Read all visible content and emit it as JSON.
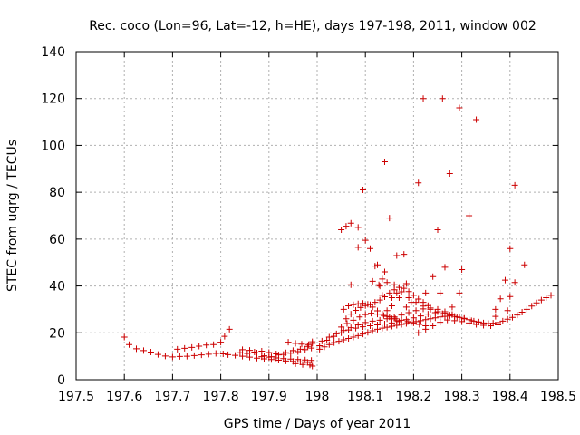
{
  "chart_data": {
    "type": "scatter",
    "title": "Rec. coco (Lon=96, Lat=-12, h=HE), days 197-198, 2011, window 002",
    "xlabel": "GPS time / Days of year 2011",
    "ylabel": "STEC from uqrg / TECUs",
    "xlim": [
      197.5,
      198.5
    ],
    "ylim": [
      0,
      140
    ],
    "grid": true,
    "marker": "+",
    "color": "#cc0000",
    "x_ticks": [
      {
        "value": 197.5,
        "label": "197.5"
      },
      {
        "value": 197.6,
        "label": "197.6"
      },
      {
        "value": 197.7,
        "label": "197.7"
      },
      {
        "value": 197.8,
        "label": "197.8"
      },
      {
        "value": 197.9,
        "label": "197.9"
      },
      {
        "value": 198.0,
        "label": "198"
      },
      {
        "value": 198.1,
        "label": "198.1"
      },
      {
        "value": 198.2,
        "label": "198.2"
      },
      {
        "value": 198.3,
        "label": "198.3"
      },
      {
        "value": 198.4,
        "label": "198.4"
      },
      {
        "value": 198.5,
        "label": "198.5"
      }
    ],
    "y_ticks": [
      {
        "value": 0,
        "label": "0"
      },
      {
        "value": 20,
        "label": "20"
      },
      {
        "value": 40,
        "label": "40"
      },
      {
        "value": 60,
        "label": "60"
      },
      {
        "value": 80,
        "label": "80"
      },
      {
        "value": 100,
        "label": "100"
      },
      {
        "value": 120,
        "label": "120"
      },
      {
        "value": 140,
        "label": "140"
      }
    ],
    "points": [
      [
        197.6,
        18.2
      ],
      [
        197.61,
        15.0
      ],
      [
        197.625,
        13.2
      ],
      [
        197.64,
        12.4
      ],
      [
        197.655,
        11.8
      ],
      [
        197.67,
        10.8
      ],
      [
        197.685,
        10.1
      ],
      [
        197.7,
        9.7
      ],
      [
        197.715,
        9.9
      ],
      [
        197.73,
        10.0
      ],
      [
        197.745,
        10.3
      ],
      [
        197.76,
        10.6
      ],
      [
        197.775,
        10.9
      ],
      [
        197.79,
        11.2
      ],
      [
        197.805,
        11.0
      ],
      [
        197.815,
        10.7
      ],
      [
        197.83,
        10.4
      ],
      [
        197.845,
        10.0
      ],
      [
        197.86,
        9.6
      ],
      [
        197.875,
        9.2
      ],
      [
        197.89,
        8.9
      ],
      [
        197.905,
        8.6
      ],
      [
        197.92,
        8.3
      ],
      [
        197.935,
        8.0
      ],
      [
        197.95,
        7.8
      ],
      [
        197.965,
        7.6
      ],
      [
        197.98,
        7.4
      ],
      [
        197.71,
        13.0
      ],
      [
        197.725,
        13.4
      ],
      [
        197.74,
        13.8
      ],
      [
        197.755,
        14.3
      ],
      [
        197.77,
        14.8
      ],
      [
        197.785,
        15.0
      ],
      [
        197.8,
        16.0
      ],
      [
        197.808,
        18.5
      ],
      [
        197.818,
        21.5
      ],
      [
        197.84,
        11.5
      ],
      [
        197.855,
        11.2
      ],
      [
        197.87,
        11.8
      ],
      [
        197.885,
        12.2
      ],
      [
        197.9,
        11.6
      ],
      [
        197.915,
        11.0
      ],
      [
        197.93,
        10.8
      ],
      [
        197.945,
        11.3
      ],
      [
        197.96,
        12.0
      ],
      [
        197.975,
        12.8
      ],
      [
        197.988,
        13.5
      ],
      [
        197.845,
        12.8
      ],
      [
        197.86,
        12.5
      ],
      [
        197.875,
        11.4
      ],
      [
        197.89,
        10.2
      ],
      [
        197.905,
        9.8
      ],
      [
        197.92,
        10.6
      ],
      [
        197.935,
        11.5
      ],
      [
        197.95,
        12.4
      ],
      [
        197.965,
        13.0
      ],
      [
        197.98,
        14.2
      ],
      [
        197.99,
        15.5
      ],
      [
        197.885,
        9.8
      ],
      [
        197.9,
        9.6
      ],
      [
        197.915,
        9.3
      ],
      [
        197.93,
        9.0
      ],
      [
        197.945,
        8.8
      ],
      [
        197.96,
        8.6
      ],
      [
        197.975,
        8.4
      ],
      [
        197.988,
        8.2
      ],
      [
        197.94,
        16.0
      ],
      [
        197.955,
        15.5
      ],
      [
        197.968,
        15.2
      ],
      [
        197.982,
        15.0
      ],
      [
        197.99,
        16.2
      ],
      [
        197.955,
        6.8
      ],
      [
        197.97,
        6.5
      ],
      [
        197.985,
        6.3
      ],
      [
        197.99,
        5.8
      ],
      [
        198.005,
        13.0
      ],
      [
        198.015,
        14.0
      ],
      [
        198.025,
        15.0
      ],
      [
        198.035,
        15.8
      ],
      [
        198.045,
        16.4
      ],
      [
        198.055,
        17.0
      ],
      [
        198.065,
        17.6
      ],
      [
        198.075,
        18.2
      ],
      [
        198.085,
        18.8
      ],
      [
        198.095,
        19.5
      ],
      [
        198.105,
        20.2
      ],
      [
        198.115,
        20.9
      ],
      [
        198.125,
        21.5
      ],
      [
        198.135,
        22.0
      ],
      [
        198.145,
        22.4
      ],
      [
        198.155,
        22.8
      ],
      [
        198.165,
        23.2
      ],
      [
        198.175,
        23.6
      ],
      [
        198.185,
        24.0
      ],
      [
        198.195,
        24.4
      ],
      [
        198.205,
        24.8
      ],
      [
        198.215,
        25.2
      ],
      [
        198.225,
        25.6
      ],
      [
        198.235,
        26.0
      ],
      [
        198.245,
        26.4
      ],
      [
        198.255,
        26.8
      ],
      [
        198.265,
        27.0
      ],
      [
        198.275,
        27.2
      ],
      [
        198.285,
        27.0
      ],
      [
        198.295,
        26.6
      ],
      [
        198.305,
        26.2
      ],
      [
        198.315,
        25.6
      ],
      [
        198.325,
        25.0
      ],
      [
        198.335,
        24.6
      ],
      [
        198.345,
        24.2
      ],
      [
        198.355,
        24.0
      ],
      [
        198.365,
        24.1
      ],
      [
        198.375,
        24.4
      ],
      [
        198.385,
        25.0
      ],
      [
        198.395,
        25.8
      ],
      [
        198.405,
        26.6
      ],
      [
        198.415,
        27.6
      ],
      [
        198.425,
        28.8
      ],
      [
        198.435,
        30.0
      ],
      [
        198.445,
        31.4
      ],
      [
        198.455,
        32.8
      ],
      [
        198.465,
        34.0
      ],
      [
        198.475,
        35.0
      ],
      [
        198.485,
        36.0
      ],
      [
        198.005,
        14.5
      ],
      [
        198.02,
        16.8
      ],
      [
        198.035,
        18.5
      ],
      [
        198.05,
        20.0
      ],
      [
        198.065,
        21.2
      ],
      [
        198.08,
        22.0
      ],
      [
        198.095,
        22.6
      ],
      [
        198.11,
        23.0
      ],
      [
        198.125,
        23.4
      ],
      [
        198.14,
        23.8
      ],
      [
        198.155,
        24.2
      ],
      [
        198.17,
        24.8
      ],
      [
        198.185,
        25.6
      ],
      [
        198.2,
        26.4
      ],
      [
        198.215,
        27.2
      ],
      [
        198.23,
        28.0
      ],
      [
        198.245,
        28.6
      ],
      [
        198.26,
        28.2
      ],
      [
        198.275,
        27.6
      ],
      [
        198.29,
        26.8
      ],
      [
        198.305,
        26.0
      ],
      [
        198.32,
        25.2
      ],
      [
        198.335,
        24.6
      ],
      [
        198.01,
        16.5
      ],
      [
        198.025,
        18.2
      ],
      [
        198.04,
        19.6
      ],
      [
        198.055,
        21.0
      ],
      [
        198.07,
        22.2
      ],
      [
        198.085,
        23.4
      ],
      [
        198.1,
        24.4
      ],
      [
        198.115,
        25.0
      ],
      [
        198.13,
        25.4
      ],
      [
        198.145,
        26.0
      ],
      [
        198.16,
        26.8
      ],
      [
        198.175,
        27.6
      ],
      [
        198.19,
        28.6
      ],
      [
        198.205,
        29.5
      ],
      [
        198.22,
        30.2
      ],
      [
        198.235,
        30.6
      ],
      [
        198.25,
        30.0
      ],
      [
        198.265,
        29.0
      ],
      [
        198.28,
        27.8
      ],
      [
        198.295,
        26.6
      ],
      [
        198.05,
        22.5
      ],
      [
        198.062,
        24.0
      ],
      [
        198.075,
        25.4
      ],
      [
        198.088,
        26.8
      ],
      [
        198.1,
        27.8
      ],
      [
        198.112,
        28.4
      ],
      [
        198.125,
        28.0
      ],
      [
        198.138,
        27.4
      ],
      [
        198.15,
        26.8
      ],
      [
        198.162,
        26.0
      ],
      [
        198.175,
        25.4
      ],
      [
        198.188,
        24.8
      ],
      [
        198.2,
        24.2
      ],
      [
        198.212,
        23.6
      ],
      [
        198.225,
        23.0
      ],
      [
        198.055,
        30.0
      ],
      [
        198.065,
        31.5
      ],
      [
        198.075,
        32.0
      ],
      [
        198.085,
        32.4
      ],
      [
        198.095,
        32.6
      ],
      [
        198.105,
        32.2
      ],
      [
        198.115,
        31.0
      ],
      [
        198.125,
        29.4
      ],
      [
        198.135,
        28.0
      ],
      [
        198.145,
        27.0
      ],
      [
        198.155,
        26.0
      ],
      [
        198.165,
        25.2
      ],
      [
        198.06,
        26.0
      ],
      [
        198.07,
        28.0
      ],
      [
        198.08,
        29.6
      ],
      [
        198.09,
        30.8
      ],
      [
        198.1,
        31.6
      ],
      [
        198.11,
        32.0
      ],
      [
        198.12,
        33.0
      ],
      [
        198.13,
        34.0
      ],
      [
        198.14,
        35.4
      ],
      [
        198.15,
        37.0
      ],
      [
        198.16,
        38.4
      ],
      [
        198.17,
        39.4
      ],
      [
        198.18,
        39.0
      ],
      [
        198.19,
        37.6
      ],
      [
        198.2,
        36.0
      ],
      [
        198.21,
        34.4
      ],
      [
        198.22,
        33.0
      ],
      [
        198.23,
        31.6
      ],
      [
        198.13,
        40.0
      ],
      [
        198.145,
        41.5
      ],
      [
        198.16,
        40.5
      ],
      [
        198.175,
        37.5
      ],
      [
        198.19,
        35.0
      ],
      [
        198.205,
        33.0
      ],
      [
        198.22,
        31.4
      ],
      [
        198.235,
        30.0
      ],
      [
        198.25,
        29.0
      ],
      [
        198.265,
        28.4
      ],
      [
        198.28,
        27.8
      ],
      [
        198.21,
        20.0
      ],
      [
        198.225,
        21.5
      ],
      [
        198.24,
        23.0
      ],
      [
        198.255,
        24.5
      ],
      [
        198.27,
        25.5
      ],
      [
        198.285,
        25.2
      ],
      [
        198.3,
        24.8
      ],
      [
        198.315,
        24.2
      ],
      [
        198.33,
        23.6
      ],
      [
        198.345,
        23.2
      ],
      [
        198.36,
        23.0
      ],
      [
        198.375,
        23.4
      ],
      [
        198.05,
        64.0
      ],
      [
        198.06,
        65.5
      ],
      [
        198.07,
        66.8
      ],
      [
        198.085,
        65.0
      ],
      [
        198.1,
        59.5
      ],
      [
        198.11,
        56.0
      ],
      [
        198.085,
        56.5
      ],
      [
        198.07,
        40.5
      ],
      [
        198.12,
        48.5
      ],
      [
        198.125,
        49.0
      ],
      [
        198.115,
        42.0
      ],
      [
        198.128,
        40.5
      ],
      [
        198.135,
        43.0
      ],
      [
        198.14,
        46.0
      ],
      [
        198.165,
        53.0
      ],
      [
        198.18,
        53.5
      ],
      [
        198.185,
        41.0
      ],
      [
        198.165,
        37.0
      ],
      [
        198.155,
        35.0
      ],
      [
        198.21,
        84.0
      ],
      [
        198.22,
        120.0
      ],
      [
        198.26,
        120.0
      ],
      [
        198.295,
        116.0
      ],
      [
        198.33,
        111.0
      ],
      [
        198.14,
        93.0
      ],
      [
        198.095,
        81.0
      ],
      [
        198.15,
        69.0
      ],
      [
        198.275,
        88.0
      ],
      [
        198.25,
        64.0
      ],
      [
        198.315,
        70.0
      ],
      [
        198.24,
        44.0
      ],
      [
        198.265,
        48.0
      ],
      [
        198.3,
        47.0
      ],
      [
        198.41,
        83.0
      ],
      [
        198.4,
        56.0
      ],
      [
        198.43,
        49.0
      ],
      [
        198.39,
        42.5
      ],
      [
        198.41,
        41.5
      ],
      [
        198.4,
        35.5
      ],
      [
        198.38,
        34.5
      ],
      [
        198.37,
        30.0
      ],
      [
        198.395,
        29.5
      ],
      [
        198.37,
        27.0
      ],
      [
        198.255,
        37.0
      ],
      [
        198.225,
        37.0
      ],
      [
        198.195,
        33.0
      ],
      [
        198.185,
        31.0
      ],
      [
        198.17,
        35.0
      ],
      [
        198.155,
        31.5
      ],
      [
        198.145,
        29.5
      ],
      [
        198.135,
        36.0
      ],
      [
        198.28,
        31.0
      ],
      [
        198.295,
        37.0
      ]
    ]
  }
}
